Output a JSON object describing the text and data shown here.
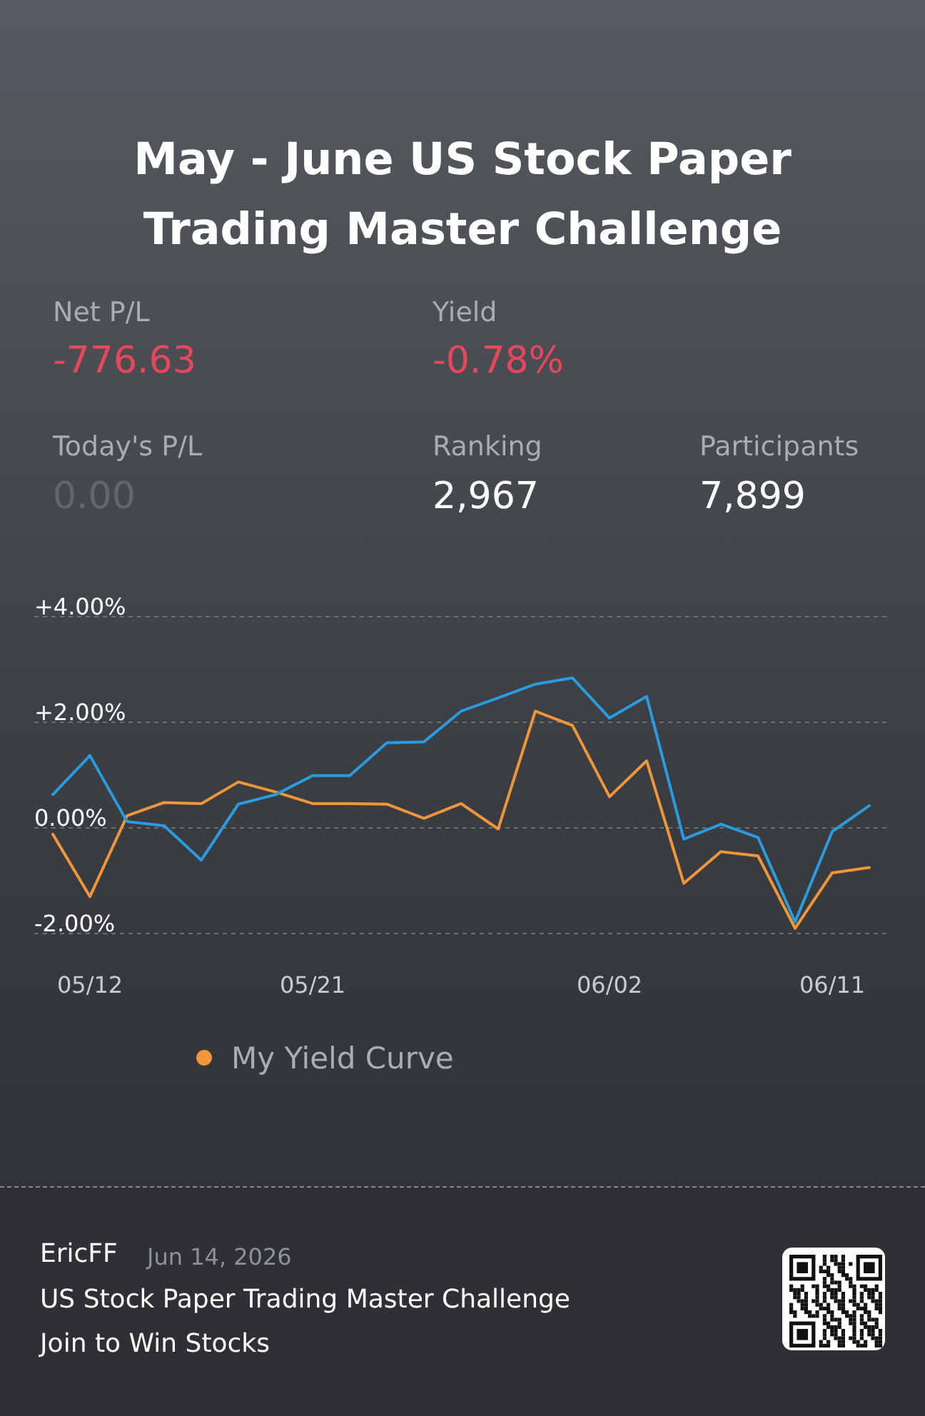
{
  "chart_data": {
    "type": "line",
    "title": "May - June US Stock Paper Trading Master Challenge",
    "categories": [
      null,
      "05/12",
      null,
      null,
      null,
      null,
      null,
      "05/21",
      null,
      null,
      null,
      null,
      null,
      null,
      null,
      "06/02",
      null,
      null,
      null,
      null,
      null,
      "06/11",
      null
    ],
    "series": [
      {
        "name": "My Yield Curve",
        "color": "#f0963a",
        "values": [
          -0.12,
          -1.3,
          0.23,
          0.48,
          0.46,
          0.87,
          0.68,
          0.46,
          0.46,
          0.45,
          0.18,
          0.46,
          -0.02,
          2.21,
          1.94,
          0.59,
          1.27,
          -1.05,
          -0.45,
          -0.53,
          -1.9,
          -0.85,
          -0.75
        ]
      },
      {
        "color": "#2b9be0",
        "values": [
          0.63,
          1.37,
          0.12,
          0.04,
          -0.61,
          0.45,
          0.63,
          0.99,
          0.99,
          1.61,
          1.63,
          2.21,
          2.46,
          2.72,
          2.84,
          2.08,
          2.49,
          -0.21,
          0.07,
          -0.18,
          -1.78,
          -0.07,
          0.42
        ]
      }
    ],
    "ylim": [
      -2,
      4
    ],
    "yticks": [
      {
        "value": -2,
        "label": "-2.00%"
      },
      {
        "value": 0,
        "label": "0.00%"
      },
      {
        "value": 2,
        "label": "+2.00%"
      },
      {
        "value": 4,
        "label": "+4.00%"
      }
    ],
    "grid": "y",
    "legend": "bottom",
    "annotations": [
      "Net P/L",
      "-776.63",
      "Yield",
      "-0.78%",
      "Today's P/L",
      "0.00",
      "Ranking",
      "2,967",
      "Participants",
      "7,899",
      "EricFF",
      "Jun 14, 2026",
      "US Stock Paper Trading Master Challenge",
      "Join to Win Stocks"
    ]
  }
}
